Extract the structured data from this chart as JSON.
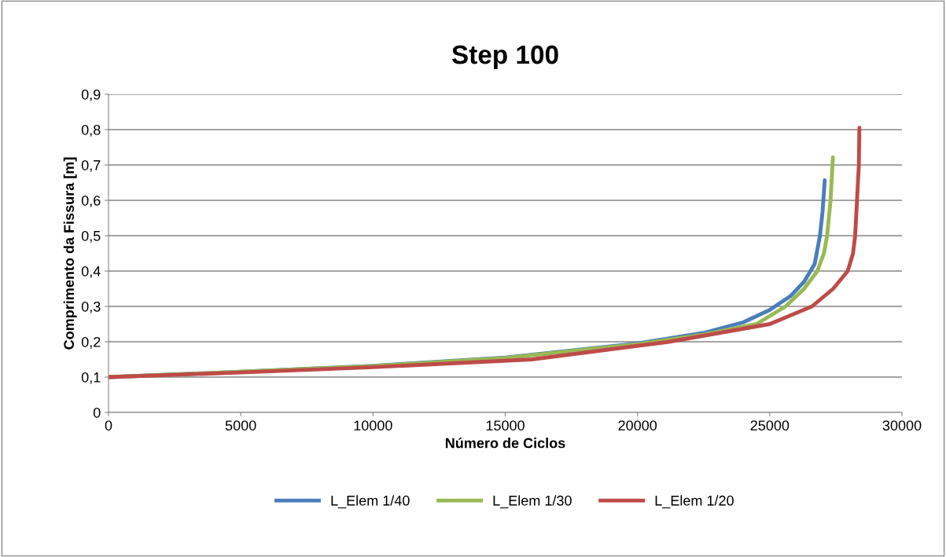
{
  "chart_data": {
    "type": "line",
    "title": "Step 100",
    "xlabel": "Número de Ciclos",
    "ylabel": "Comprimento da Fissura [m]",
    "xlim": [
      0,
      30000
    ],
    "xticks": [
      0,
      5000,
      10000,
      15000,
      20000,
      25000,
      30000
    ],
    "ylim": [
      0,
      0.9
    ],
    "yticks": [
      {
        "value": 0,
        "label": "0"
      },
      {
        "value": 0.1,
        "label": "0,1"
      },
      {
        "value": 0.2,
        "label": "0,2"
      },
      {
        "value": 0.3,
        "label": "0,3"
      },
      {
        "value": 0.4,
        "label": "0,4"
      },
      {
        "value": 0.5,
        "label": "0,5"
      },
      {
        "value": 0.6,
        "label": "0,6"
      },
      {
        "value": 0.7,
        "label": "0,7"
      },
      {
        "value": 0.8,
        "label": "0,8"
      },
      {
        "value": 0.9,
        "label": "0,9"
      }
    ],
    "grid": "y",
    "legend": "bottom",
    "marker": "none",
    "line_style": "solid",
    "series": [
      {
        "name": "L_Elem 1/40",
        "color": "#4a7ebb",
        "x": [
          0,
          5000,
          10000,
          15000,
          20000,
          22500,
          24000,
          25000,
          25800,
          26300,
          26700,
          26900,
          27000,
          27080
        ],
        "values": [
          0.1,
          0.115,
          0.132,
          0.155,
          0.195,
          0.225,
          0.255,
          0.29,
          0.33,
          0.37,
          0.42,
          0.5,
          0.57,
          0.657
        ]
      },
      {
        "name": "L_Elem 1/30",
        "color": "#98b954",
        "x": [
          0,
          5000,
          10000,
          15000,
          20000,
          22500,
          24500,
          25600,
          26300,
          26800,
          27050,
          27170,
          27300,
          27390
        ],
        "values": [
          0.1,
          0.115,
          0.131,
          0.154,
          0.193,
          0.22,
          0.25,
          0.3,
          0.35,
          0.4,
          0.45,
          0.5,
          0.6,
          0.722
        ]
      },
      {
        "name": "L_Elem 1/20",
        "color": "#be4b48",
        "x": [
          0,
          5000,
          10000,
          16000,
          21200,
          25000,
          26600,
          27400,
          27950,
          28150,
          28230,
          28300,
          28370,
          28390
        ],
        "values": [
          0.1,
          0.113,
          0.128,
          0.15,
          0.2,
          0.25,
          0.3,
          0.35,
          0.4,
          0.45,
          0.5,
          0.6,
          0.7,
          0.805
        ]
      }
    ]
  }
}
